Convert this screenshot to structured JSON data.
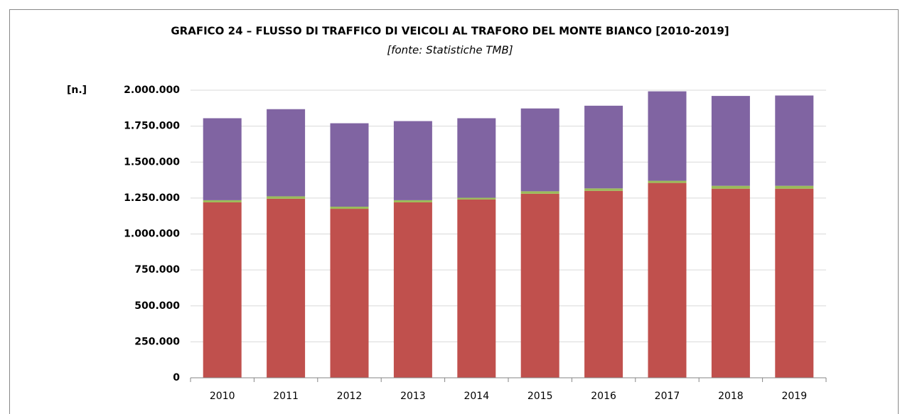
{
  "chart_data": {
    "type": "stacked_bar",
    "title": "GRAFICO 24 – FLUSSO DI TRAFFICO DI VEICOLI AL TRAFORO DEL MONTE BIANCO [2010-2019]",
    "subtitle": "[fonte: Statistiche TMB]",
    "y_label": "[n.]",
    "categories": [
      "2010",
      "2011",
      "2012",
      "2013",
      "2014",
      "2015",
      "2016",
      "2017",
      "2018",
      "2019"
    ],
    "series": [
      {
        "color": "#c0504d",
        "values": [
          1220000,
          1245000,
          1175000,
          1220000,
          1240000,
          1280000,
          1300000,
          1355000,
          1315000,
          1315000
        ]
      },
      {
        "color": "#9bbb59",
        "values": [
          15000,
          17000,
          15000,
          15000,
          12000,
          17000,
          17000,
          15000,
          20000,
          20000
        ]
      },
      {
        "color": "#8064a2",
        "values": [
          570000,
          606000,
          580000,
          550000,
          553000,
          576000,
          575000,
          622000,
          625000,
          628000
        ]
      }
    ],
    "ylim": [
      0,
      2000000
    ],
    "yticks": [
      0,
      {
        "value": 250000,
        "label": "250.000"
      },
      {
        "value": 500000,
        "label": "500.000"
      },
      {
        "value": 750000,
        "label": "750.000"
      },
      {
        "value": 1000000,
        "label": "1.000.000"
      },
      {
        "value": 1250000,
        "label": "1.250.000"
      },
      {
        "value": 1500000,
        "label": "1.500.000"
      },
      {
        "value": 1750000,
        "label": "1.750.000"
      },
      {
        "value": 2000000,
        "label": "2.000.000"
      }
    ],
    "grid": true
  }
}
